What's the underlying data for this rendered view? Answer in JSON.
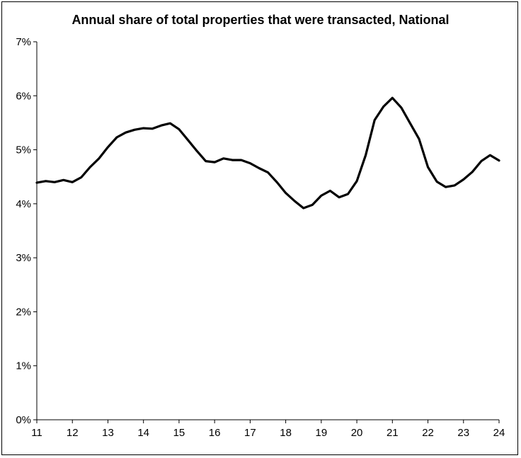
{
  "chart_data": {
    "type": "line",
    "title": "Annual share of total properties that were transacted, National",
    "xlabel": "",
    "ylabel": "",
    "xlim": [
      11,
      24
    ],
    "ylim": [
      0,
      7
    ],
    "x_ticks": [
      11,
      12,
      13,
      14,
      15,
      16,
      17,
      18,
      19,
      20,
      21,
      22,
      23,
      24
    ],
    "x_tick_labels": [
      "11",
      "12",
      "13",
      "14",
      "15",
      "16",
      "17",
      "18",
      "19",
      "20",
      "21",
      "22",
      "23",
      "24"
    ],
    "y_ticks": [
      0,
      1,
      2,
      3,
      4,
      5,
      6,
      7
    ],
    "y_tick_labels": [
      "0%",
      "1%",
      "2%",
      "3%",
      "4%",
      "5%",
      "6%",
      "7%"
    ],
    "grid": false,
    "legend": "none",
    "line_color": "#000000",
    "series": [
      {
        "name": "National",
        "x": [
          11.0,
          11.25,
          11.5,
          11.75,
          12.0,
          12.25,
          12.5,
          12.75,
          13.0,
          13.25,
          13.5,
          13.75,
          14.0,
          14.25,
          14.5,
          14.75,
          15.0,
          15.25,
          15.5,
          15.75,
          16.0,
          16.25,
          16.5,
          16.75,
          17.0,
          17.25,
          17.5,
          17.75,
          18.0,
          18.25,
          18.5,
          18.75,
          19.0,
          19.25,
          19.5,
          19.75,
          20.0,
          20.25,
          20.5,
          20.75,
          21.0,
          21.25,
          21.5,
          21.75,
          22.0,
          22.25,
          22.5,
          22.75,
          23.0,
          23.25,
          23.5,
          23.75,
          24.0
        ],
        "values": [
          4.39,
          4.42,
          4.4,
          4.44,
          4.4,
          4.49,
          4.68,
          4.84,
          5.05,
          5.23,
          5.32,
          5.37,
          5.4,
          5.39,
          5.45,
          5.49,
          5.38,
          5.18,
          4.98,
          4.79,
          4.77,
          4.84,
          4.81,
          4.81,
          4.75,
          4.66,
          4.58,
          4.4,
          4.2,
          4.05,
          3.92,
          3.98,
          4.15,
          4.24,
          4.12,
          4.18,
          4.42,
          4.9,
          5.55,
          5.8,
          5.96,
          5.78,
          5.49,
          5.2,
          4.68,
          4.41,
          4.31,
          4.34,
          4.45,
          4.59,
          4.79,
          4.9,
          4.8
        ]
      }
    ]
  }
}
